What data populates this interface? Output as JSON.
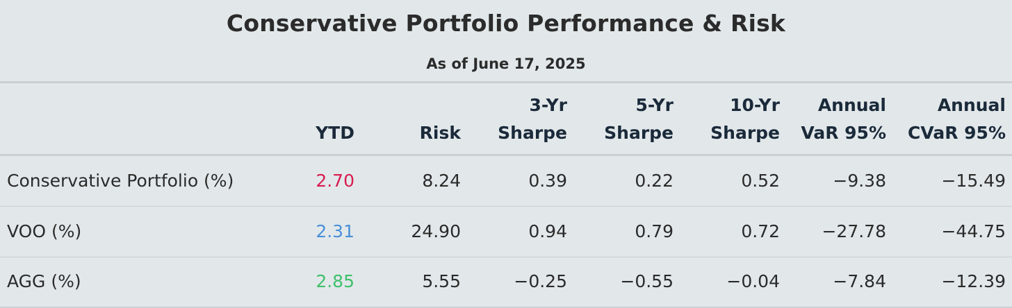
{
  "title": "Conservative Portfolio Performance & Risk",
  "subtitle": "As of June 17, 2025",
  "columns": [
    {
      "line1": "",
      "line2": "YTD"
    },
    {
      "line1": "",
      "line2": "Risk"
    },
    {
      "line1": "3-Yr",
      "line2": "Sharpe"
    },
    {
      "line1": "5-Yr",
      "line2": "Sharpe"
    },
    {
      "line1": "10-Yr",
      "line2": "Sharpe"
    },
    {
      "line1": "Annual",
      "line2": "VaR 95%"
    },
    {
      "line1": "Annual",
      "line2": "CVaR 95%"
    }
  ],
  "rows": [
    {
      "label": "Conservative Portfolio (%)",
      "ytd_color": "#d81b50",
      "cells": [
        "2.70",
        "8.24",
        "0.39",
        "0.22",
        "0.52",
        "−9.38",
        "−15.49"
      ]
    },
    {
      "label": "VOO (%)",
      "ytd_color": "#4a8fd8",
      "cells": [
        "2.31",
        "24.90",
        "0.94",
        "0.79",
        "0.72",
        "−27.78",
        "−44.75"
      ]
    },
    {
      "label": "AGG (%)",
      "ytd_color": "#3fbf6b",
      "cells": [
        "2.85",
        "5.55",
        "−0.25",
        "−0.55",
        "−0.04",
        "−7.84",
        "−12.39"
      ]
    }
  ],
  "chart_data": {
    "type": "table",
    "title": "Conservative Portfolio Performance & Risk",
    "subtitle": "As of June 17, 2025",
    "columns": [
      "YTD",
      "Risk",
      "3-Yr Sharpe",
      "5-Yr Sharpe",
      "10-Yr Sharpe",
      "Annual VaR 95%",
      "Annual CVaR 95%"
    ],
    "rows": [
      {
        "name": "Conservative Portfolio (%)",
        "values": [
          2.7,
          8.24,
          0.39,
          0.22,
          0.52,
          -9.38,
          -15.49
        ]
      },
      {
        "name": "VOO (%)",
        "values": [
          2.31,
          24.9,
          0.94,
          0.79,
          0.72,
          -27.78,
          -44.75
        ]
      },
      {
        "name": "AGG (%)",
        "values": [
          2.85,
          5.55,
          -0.25,
          -0.55,
          -0.04,
          -7.84,
          -12.39
        ]
      }
    ]
  }
}
